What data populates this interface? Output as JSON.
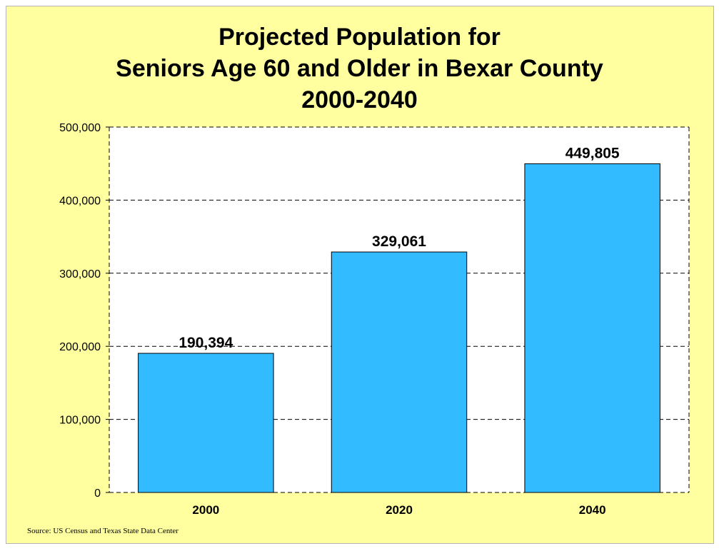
{
  "chart_data": {
    "type": "bar",
    "title": [
      "Projected Population for",
      "Seniors Age 60 and Older in Bexar County",
      "2000-2040"
    ],
    "categories": [
      "2000",
      "2020",
      "2040"
    ],
    "values": [
      190394,
      329061,
      449805
    ],
    "data_labels": [
      "190,394",
      "329,061",
      "449,805"
    ],
    "y_ticks": [
      {
        "value": 0,
        "label": "0"
      },
      {
        "value": 100000,
        "label": "100,000"
      },
      {
        "value": 200000,
        "label": "200,000"
      },
      {
        "value": 300000,
        "label": "300,000"
      },
      {
        "value": 400000,
        "label": "400,000"
      },
      {
        "value": 500000,
        "label": "500,000"
      }
    ],
    "ylim": [
      0,
      500000
    ],
    "xlabel": "",
    "ylabel": "",
    "grid": true,
    "colors": {
      "bar": "#33bbff",
      "background": "#ffffa0",
      "plot_area": "#ffffff"
    }
  },
  "source": "Source:  US Census and Texas State Data Center"
}
